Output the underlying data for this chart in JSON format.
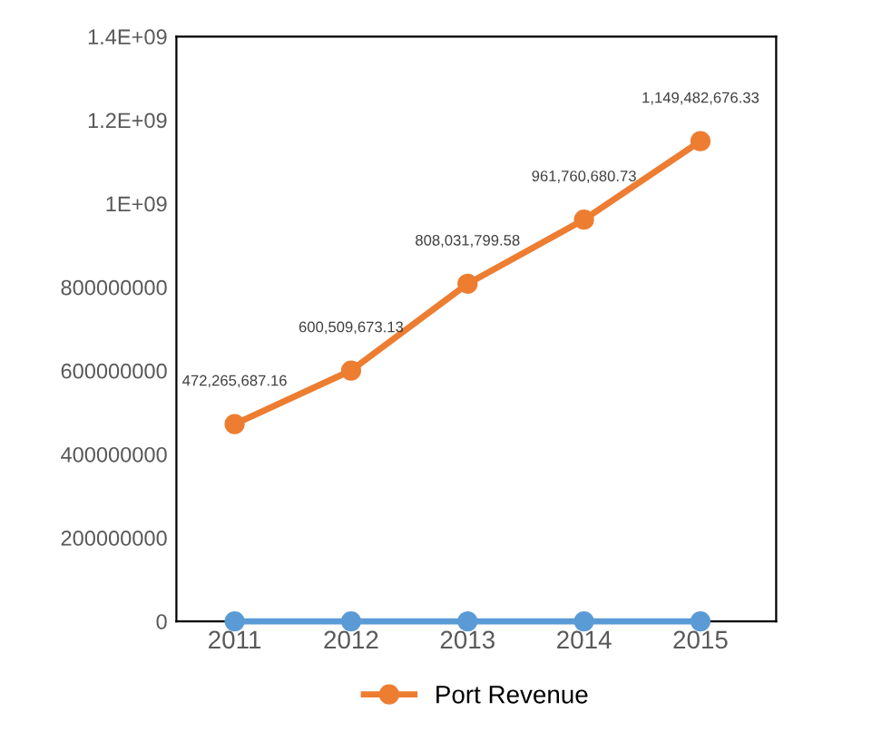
{
  "chart_data": {
    "type": "line",
    "categories": [
      "2011",
      "2012",
      "2013",
      "2014",
      "2015"
    ],
    "series": [
      {
        "color": "#5b9bd5",
        "values": [
          0,
          0,
          0,
          0,
          0
        ]
      },
      {
        "name": "Port Revenue",
        "color": "#ed7d31",
        "values": [
          472265687.16,
          600509673.13,
          808031799.58,
          961760680.73,
          1149482676.33
        ],
        "value_labels": [
          "472,265,687.16",
          "600,509,673.13",
          "808,031,799.58",
          "961,760,680.73",
          "1,149,482,676.33"
        ]
      }
    ],
    "ylim": [
      0,
      1400000000
    ],
    "yticks": [
      0,
      {
        "value": 200000000,
        "label": "200000000"
      },
      {
        "value": 400000000,
        "label": "400000000"
      },
      {
        "value": 600000000,
        "label": "600000000"
      },
      {
        "value": 800000000,
        "label": "800000000"
      },
      {
        "value": 1000000000,
        "label": "1E+09"
      },
      {
        "value": 1200000000,
        "label": "1.2E+09"
      },
      {
        "value": 1400000000,
        "label": "1.4E+09"
      }
    ],
    "grid": false,
    "legend": "bottom",
    "marker": "circle",
    "line_style": "solid"
  }
}
